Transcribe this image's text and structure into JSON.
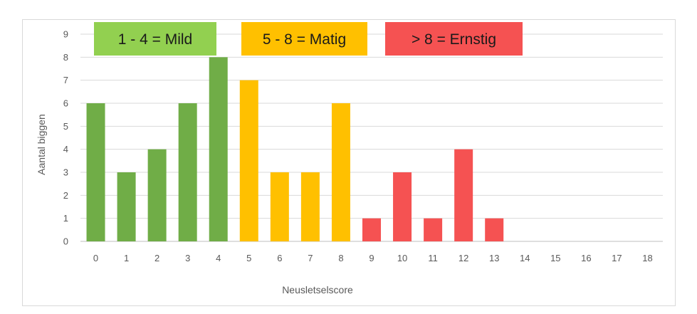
{
  "chart_data": {
    "type": "bar",
    "title": "",
    "xlabel": "Neusletselscore",
    "ylabel": "Aantal biggen",
    "ylim": [
      0,
      9
    ],
    "grid": true,
    "categories": [
      "0",
      "1",
      "2",
      "3",
      "4",
      "5",
      "6",
      "7",
      "8",
      "9",
      "10",
      "11",
      "12",
      "13",
      "14",
      "15",
      "16",
      "17",
      "18"
    ],
    "values": [
      6,
      3,
      4,
      6,
      8,
      7,
      3,
      3,
      6,
      1,
      3,
      1,
      4,
      1,
      0,
      0,
      0,
      0,
      0
    ],
    "colors": {
      "mild": "#70ad47",
      "matig": "#ffc000",
      "ernstig": "#f55252",
      "grid": "#d9d9d9",
      "axis": "#bfbfbf"
    },
    "bands": [
      {
        "key": "mild",
        "from": 0,
        "to": 4,
        "label": "1 - 4 = Mild",
        "color": "#92d050"
      },
      {
        "key": "matig",
        "from": 5,
        "to": 8,
        "label": "5 - 8 = Matig",
        "color": "#ffc000"
      },
      {
        "key": "ernstig",
        "from": 9,
        "to": 18,
        "label": "> 8 = Ernstig",
        "color": "#f55252"
      }
    ],
    "legend_placement": "top"
  }
}
